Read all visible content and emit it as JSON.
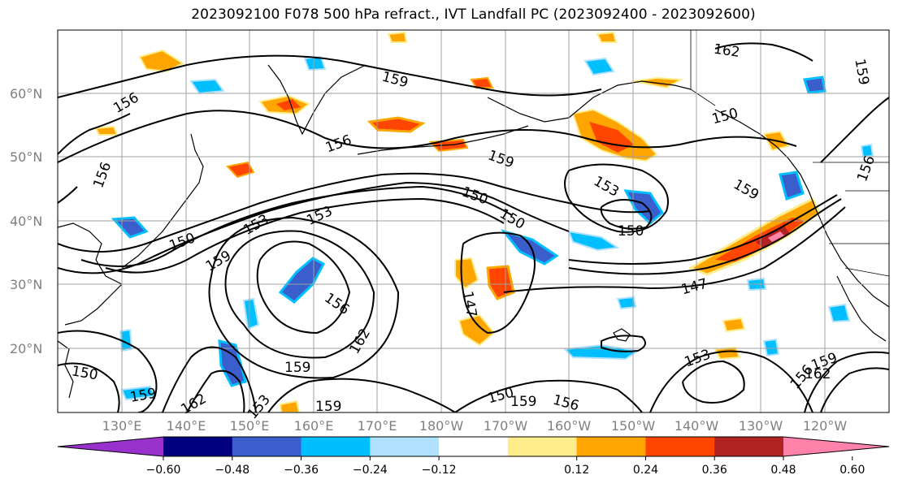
{
  "title": "2023092100 F078 500 hPa refract., IVT Landfall PC (2023092400 - 2023092600)",
  "lat_labels": [
    "60°N",
    "50°N",
    "40°N",
    "30°N",
    "20°N"
  ],
  "lon_labels": [
    "130°E",
    "140°E",
    "150°E",
    "160°E",
    "170°E",
    "180°W",
    "170°W",
    "160°W",
    "150°W",
    "140°W",
    "130°W",
    "120°W"
  ],
  "colorbar": {
    "ticks": [
      "−0.60",
      "−0.48",
      "−0.36",
      "−0.24",
      "−0.12",
      "0.12",
      "0.24",
      "0.36",
      "0.48",
      "0.60"
    ],
    "colors": [
      "#9932cc",
      "#000080",
      "#3a5fcd",
      "#00bfff",
      "#b0e2ff",
      "#ffffff",
      "#ffec8b",
      "#ffa500",
      "#ff4500",
      "#b22222",
      "#ff82ab"
    ]
  },
  "contour_labels": [
    "156",
    "159",
    "156",
    "156",
    "153",
    "150",
    "159",
    "153",
    "150",
    "150",
    "159",
    "153",
    "150",
    "159",
    "147",
    "147",
    "156",
    "162",
    "159",
    "150",
    "159",
    "162",
    "153",
    "159",
    "150",
    "159",
    "156",
    "159",
    "162",
    "153",
    "162",
    "150",
    "156",
    "159",
    "156"
  ],
  "icons": {
    "colorbar_arrows": "triangle-arrow"
  }
}
